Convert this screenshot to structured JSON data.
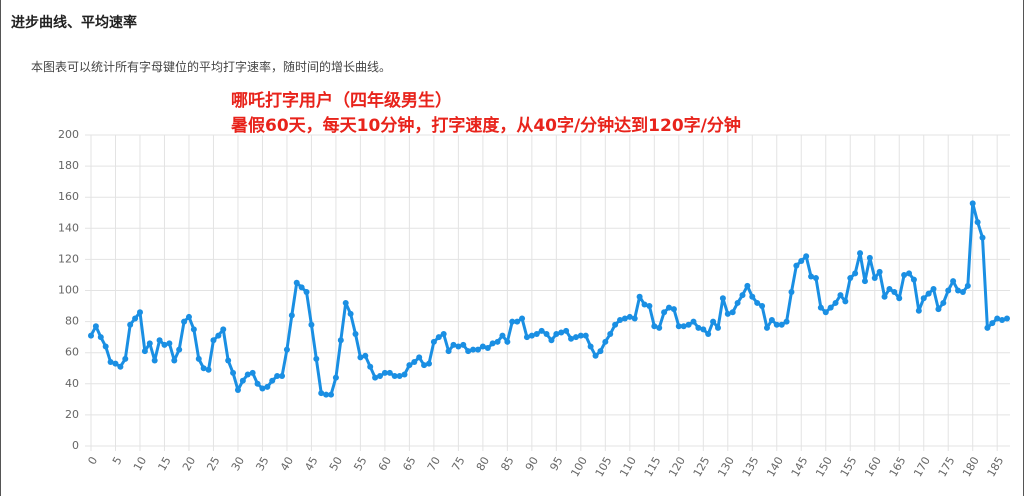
{
  "header": {
    "title": "进步曲线、平均速率"
  },
  "description": "本图表可以统计所有字母键位的平均打字速率，随时间的增长曲线。",
  "chart_data": {
    "type": "line",
    "annotations": [
      "哪吒打字用户（四年级男生）",
      "暑假60天，每天10分钟，打字速度，从40字/分钟达到120字/分钟"
    ],
    "color": "#1a8fe3",
    "grid": true,
    "x": [
      0,
      1,
      2,
      3,
      4,
      5,
      6,
      7,
      8,
      9,
      10,
      11,
      12,
      13,
      14,
      15,
      16,
      17,
      18,
      19,
      20,
      21,
      22,
      23,
      24,
      25,
      26,
      27,
      28,
      29,
      30,
      31,
      32,
      33,
      34,
      35,
      36,
      37,
      38,
      39,
      40,
      41,
      42,
      43,
      44,
      45,
      46,
      47,
      48,
      49,
      50,
      51,
      52,
      53,
      54,
      55,
      56,
      57,
      58,
      59,
      60,
      61,
      62,
      63,
      64,
      65,
      66,
      67,
      68,
      69,
      70,
      71,
      72,
      73,
      74,
      75,
      76,
      77,
      78,
      79,
      80,
      81,
      82,
      83,
      84,
      85,
      86,
      87,
      88,
      89,
      90,
      91,
      92,
      93,
      94,
      95,
      96,
      97,
      98,
      99,
      100,
      101,
      102,
      103,
      104,
      105,
      106,
      107,
      108,
      109,
      110,
      111,
      112,
      113,
      114,
      115,
      116,
      117,
      118,
      119,
      120,
      121,
      122,
      123,
      124,
      125,
      126,
      127,
      128,
      129,
      130,
      131,
      132,
      133,
      134,
      135,
      136,
      137,
      138,
      139,
      140,
      141,
      142,
      143,
      144,
      145,
      146,
      147,
      148,
      149,
      150,
      151,
      152,
      153,
      154,
      155,
      156,
      157,
      158,
      159,
      160,
      161,
      162,
      163,
      164,
      165,
      166,
      167,
      168,
      169,
      170,
      171,
      172,
      173,
      174,
      175,
      176,
      177,
      178,
      179,
      180,
      181,
      182,
      183,
      184,
      185,
      186,
      187
    ],
    "values": [
      71,
      77,
      70,
      64,
      54,
      53,
      51,
      56,
      78,
      82,
      86,
      61,
      66,
      55,
      68,
      65,
      66,
      55,
      62,
      80,
      83,
      75,
      56,
      50,
      49,
      68,
      71,
      75,
      55,
      47,
      36,
      42,
      46,
      47,
      40,
      37,
      38,
      42,
      45,
      45,
      62,
      84,
      105,
      102,
      99,
      78,
      56,
      34,
      33,
      33,
      44,
      68,
      92,
      85,
      72,
      57,
      58,
      51,
      44,
      45,
      47,
      47,
      45,
      45,
      46,
      52,
      54,
      57,
      52,
      53,
      67,
      70,
      72,
      61,
      65,
      64,
      65,
      61,
      62,
      62,
      64,
      63,
      66,
      67,
      71,
      67,
      80,
      80,
      82,
      70,
      71,
      72,
      74,
      72,
      68,
      72,
      73,
      74,
      69,
      70,
      71,
      71,
      64,
      58,
      61,
      67,
      72,
      78,
      81,
      82,
      83,
      82,
      96,
      91,
      90,
      77,
      76,
      86,
      89,
      88,
      77,
      77,
      78,
      80,
      76,
      75,
      72,
      80,
      76,
      95,
      85,
      86,
      92,
      97,
      103,
      96,
      92,
      90,
      76,
      81,
      78,
      78,
      80,
      99,
      116,
      119,
      122,
      109,
      108,
      89,
      86,
      89,
      92,
      97,
      93,
      108,
      111,
      124,
      106,
      121,
      108,
      112,
      96,
      101,
      99,
      95,
      110,
      111,
      107,
      87,
      95,
      98,
      101,
      88,
      92,
      100,
      106,
      100,
      99,
      103,
      156,
      144,
      134,
      76,
      79,
      82,
      81,
      82
    ],
    "xlim": [
      0,
      187
    ],
    "xticks": [
      0,
      5,
      10,
      15,
      20,
      25,
      30,
      35,
      40,
      45,
      50,
      55,
      60,
      65,
      70,
      75,
      80,
      85,
      90,
      95,
      100,
      105,
      110,
      115,
      120,
      125,
      130,
      135,
      140,
      145,
      150,
      155,
      160,
      165,
      170,
      175,
      180,
      185
    ],
    "ylim": [
      0,
      200
    ],
    "yticks": [
      0,
      20,
      40,
      60,
      80,
      100,
      120,
      140,
      160,
      180,
      200
    ]
  }
}
